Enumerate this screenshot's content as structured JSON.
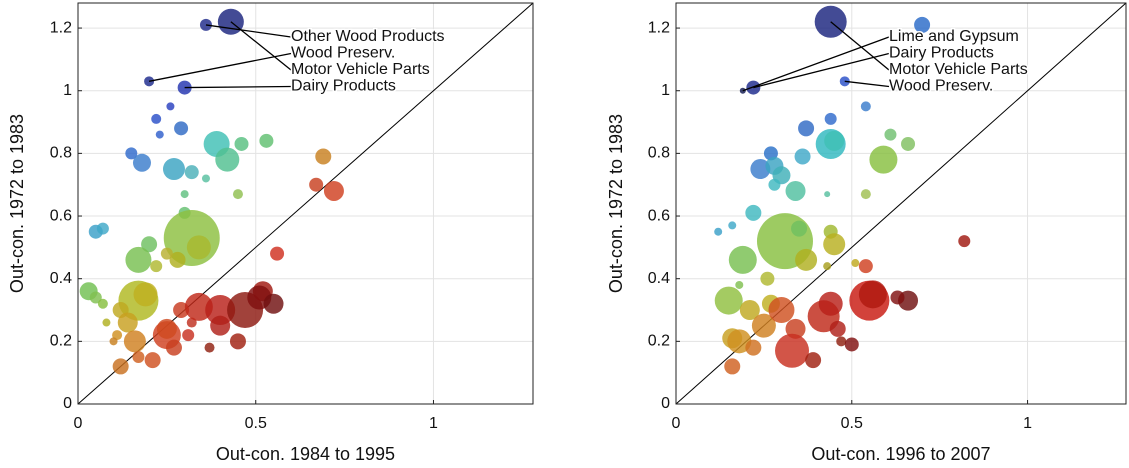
{
  "chart_data": [
    {
      "type": "scatter",
      "xlabel": "Out-con. 1984 to 1995",
      "ylabel": "Out-con. 1972 to 1983",
      "xlim": [
        0,
        1.28
      ],
      "ylim": [
        0,
        1.28
      ],
      "xticks": [
        0,
        0.5,
        1
      ],
      "yticks": [
        0,
        0.2,
        0.4,
        0.6,
        0.8,
        1,
        1.2
      ],
      "grid": true,
      "diagonal": true,
      "x": [
        0.43,
        0.36,
        0.2,
        0.3,
        0.26,
        0.22,
        0.23,
        0.29,
        0.15,
        0.18,
        0.27,
        0.32,
        0.39,
        0.42,
        0.46,
        0.53,
        0.36,
        0.3,
        0.3,
        0.45,
        0.05,
        0.07,
        0.2,
        0.32,
        0.34,
        0.17,
        0.28,
        0.25,
        0.22,
        0.03,
        0.05,
        0.07,
        0.17,
        0.19,
        0.08,
        0.12,
        0.14,
        0.16,
        0.11,
        0.1,
        0.12,
        0.17,
        0.21,
        0.25,
        0.25,
        0.27,
        0.31,
        0.29,
        0.32,
        0.34,
        0.4,
        0.4,
        0.37,
        0.47,
        0.52,
        0.51,
        0.55,
        0.56,
        0.67,
        0.69,
        0.72,
        0.45
      ],
      "values": [
        1.22,
        1.21,
        1.03,
        1.01,
        0.95,
        0.91,
        0.86,
        0.88,
        0.8,
        0.77,
        0.75,
        0.74,
        0.83,
        0.78,
        0.83,
        0.84,
        0.72,
        0.67,
        0.61,
        0.67,
        0.55,
        0.56,
        0.51,
        0.53,
        0.5,
        0.46,
        0.46,
        0.48,
        0.44,
        0.36,
        0.34,
        0.32,
        0.33,
        0.35,
        0.26,
        0.3,
        0.26,
        0.2,
        0.22,
        0.2,
        0.12,
        0.15,
        0.14,
        0.22,
        0.24,
        0.18,
        0.22,
        0.3,
        0.26,
        0.31,
        0.3,
        0.25,
        0.18,
        0.3,
        0.36,
        0.34,
        0.32,
        0.48,
        0.7,
        0.79,
        0.68,
        0.2
      ],
      "sizes": [
        13,
        6,
        5,
        7,
        4,
        5,
        4,
        7,
        6,
        9,
        11,
        7,
        13,
        12,
        7,
        7,
        4,
        4,
        6,
        5,
        7,
        6,
        8,
        28,
        12,
        13,
        8,
        6,
        6,
        9,
        6,
        5,
        20,
        12,
        4,
        8,
        10,
        11,
        5,
        4,
        8,
        6,
        8,
        14,
        10,
        8,
        6,
        8,
        5,
        14,
        15,
        10,
        5,
        18,
        10,
        12,
        10,
        7,
        7,
        8,
        10,
        8
      ],
      "colors": [
        "#1a237e",
        "#1f2a8a",
        "#1c2a8c",
        "#2233b0",
        "#2840c0",
        "#2a4fc8",
        "#2f5fcc",
        "#2f6ac4",
        "#2f6acc",
        "#3a7ccc",
        "#3aa4c2",
        "#4ab0b8",
        "#40c0b4",
        "#50c090",
        "#58c080",
        "#60c070",
        "#58c0a0",
        "#60c080",
        "#64c070",
        "#90c050",
        "#3aa0c8",
        "#40a8c8",
        "#6ec060",
        "#8cc040",
        "#a8b830",
        "#78c050",
        "#b0b020",
        "#b8b030",
        "#b0b830",
        "#70c050",
        "#80c050",
        "#88c040",
        "#b0b820",
        "#c0b020",
        "#b0b020",
        "#c0a820",
        "#c8a020",
        "#d08020",
        "#d09020",
        "#c88020",
        "#c87020",
        "#d06020",
        "#d05020",
        "#d04020",
        "#d04a20",
        "#c84020",
        "#c83020",
        "#c83a20",
        "#c03020",
        "#c02818",
        "#b82018",
        "#b02018",
        "#902010",
        "#8c1810",
        "#a01810",
        "#801010",
        "#701010",
        "#d03020",
        "#c84020",
        "#c88020",
        "#d04020",
        "#a02010"
      ],
      "annotations": [
        {
          "text": "Other Wood Products",
          "x": 0.36,
          "y": 1.21
        },
        {
          "text": "Wood Preserv.",
          "x": 0.2,
          "y": 1.03
        },
        {
          "text": "Motor Vehicle Parts",
          "x": 0.43,
          "y": 1.22
        },
        {
          "text": "Dairy Products",
          "x": 0.3,
          "y": 1.01
        }
      ]
    },
    {
      "type": "scatter",
      "xlabel": "Out-con. 1996 to 2007",
      "ylabel": "Out-con. 1972 to 1983",
      "xlim": [
        0,
        1.28
      ],
      "ylim": [
        0,
        1.28
      ],
      "xticks": [
        0,
        0.5,
        1
      ],
      "yticks": [
        0,
        0.2,
        0.4,
        0.6,
        0.8,
        1,
        1.2
      ],
      "grid": true,
      "diagonal": true,
      "x": [
        0.44,
        0.7,
        0.22,
        0.19,
        0.48,
        0.54,
        0.37,
        0.44,
        0.44,
        0.45,
        0.27,
        0.24,
        0.28,
        0.3,
        0.28,
        0.36,
        0.34,
        0.59,
        0.61,
        0.66,
        0.54,
        0.43,
        0.12,
        0.16,
        0.22,
        0.31,
        0.35,
        0.44,
        0.45,
        0.19,
        0.18,
        0.37,
        0.43,
        0.51,
        0.15,
        0.26,
        0.27,
        0.21,
        0.16,
        0.18,
        0.25,
        0.16,
        0.22,
        0.3,
        0.34,
        0.33,
        0.39,
        0.42,
        0.44,
        0.46,
        0.47,
        0.5,
        0.55,
        0.56,
        0.54,
        0.66,
        0.63,
        0.82
      ],
      "values": [
        1.22,
        1.21,
        1.01,
        1.0,
        1.03,
        0.95,
        0.88,
        0.91,
        0.83,
        0.84,
        0.8,
        0.75,
        0.76,
        0.73,
        0.7,
        0.79,
        0.68,
        0.78,
        0.86,
        0.83,
        0.67,
        0.67,
        0.55,
        0.57,
        0.61,
        0.52,
        0.56,
        0.55,
        0.51,
        0.46,
        0.38,
        0.46,
        0.44,
        0.45,
        0.33,
        0.4,
        0.32,
        0.3,
        0.21,
        0.2,
        0.25,
        0.12,
        0.18,
        0.3,
        0.24,
        0.17,
        0.14,
        0.28,
        0.32,
        0.24,
        0.2,
        0.19,
        0.33,
        0.35,
        0.44,
        0.33,
        0.34,
        0.52
      ],
      "sizes": [
        16,
        8,
        7,
        3,
        5,
        5,
        8,
        6,
        15,
        10,
        7,
        10,
        9,
        9,
        6,
        8,
        10,
        14,
        6,
        7,
        5,
        3,
        4,
        4,
        8,
        28,
        8,
        7,
        11,
        14,
        4,
        11,
        4,
        4,
        14,
        7,
        9,
        10,
        10,
        12,
        12,
        8,
        8,
        13,
        10,
        17,
        8,
        16,
        12,
        8,
        5,
        7,
        20,
        14,
        7,
        10,
        7,
        6
      ],
      "colors": [
        "#1a237e",
        "#2a6ac8",
        "#1c2a8c",
        "#101850",
        "#2a4fc8",
        "#3a7ccc",
        "#2f6ac4",
        "#2f6acc",
        "#30b8c0",
        "#40c0b4",
        "#2a70c8",
        "#3a7ccc",
        "#3aa4c2",
        "#40b0b8",
        "#40b8c0",
        "#40a8c8",
        "#50c0a0",
        "#88c040",
        "#70c070",
        "#80c060",
        "#a0c050",
        "#58c0a0",
        "#3aa0c8",
        "#40a8c8",
        "#40b8c0",
        "#88c040",
        "#70c060",
        "#a0b830",
        "#b8b020",
        "#78c050",
        "#80c050",
        "#b0b020",
        "#a8a020",
        "#c0a820",
        "#90c040",
        "#b0b830",
        "#c0b020",
        "#c0a820",
        "#c8a020",
        "#d09020",
        "#d08020",
        "#d06020",
        "#d07020",
        "#d05020",
        "#c84020",
        "#c83020",
        "#a02010",
        "#c02818",
        "#b82018",
        "#b02018",
        "#902010",
        "#801010",
        "#c81810",
        "#b01810",
        "#d04020",
        "#701010",
        "#801010",
        "#a01810"
      ],
      "annotations": [
        {
          "text": "Lime and Gypsum",
          "x": 0.19,
          "y": 1.0
        },
        {
          "text": "Dairy Products",
          "x": 0.22,
          "y": 1.01
        },
        {
          "text": "Motor Vehicle Parts",
          "x": 0.44,
          "y": 1.22
        },
        {
          "text": "Wood Preserv.",
          "x": 0.48,
          "y": 1.03
        }
      ]
    }
  ]
}
